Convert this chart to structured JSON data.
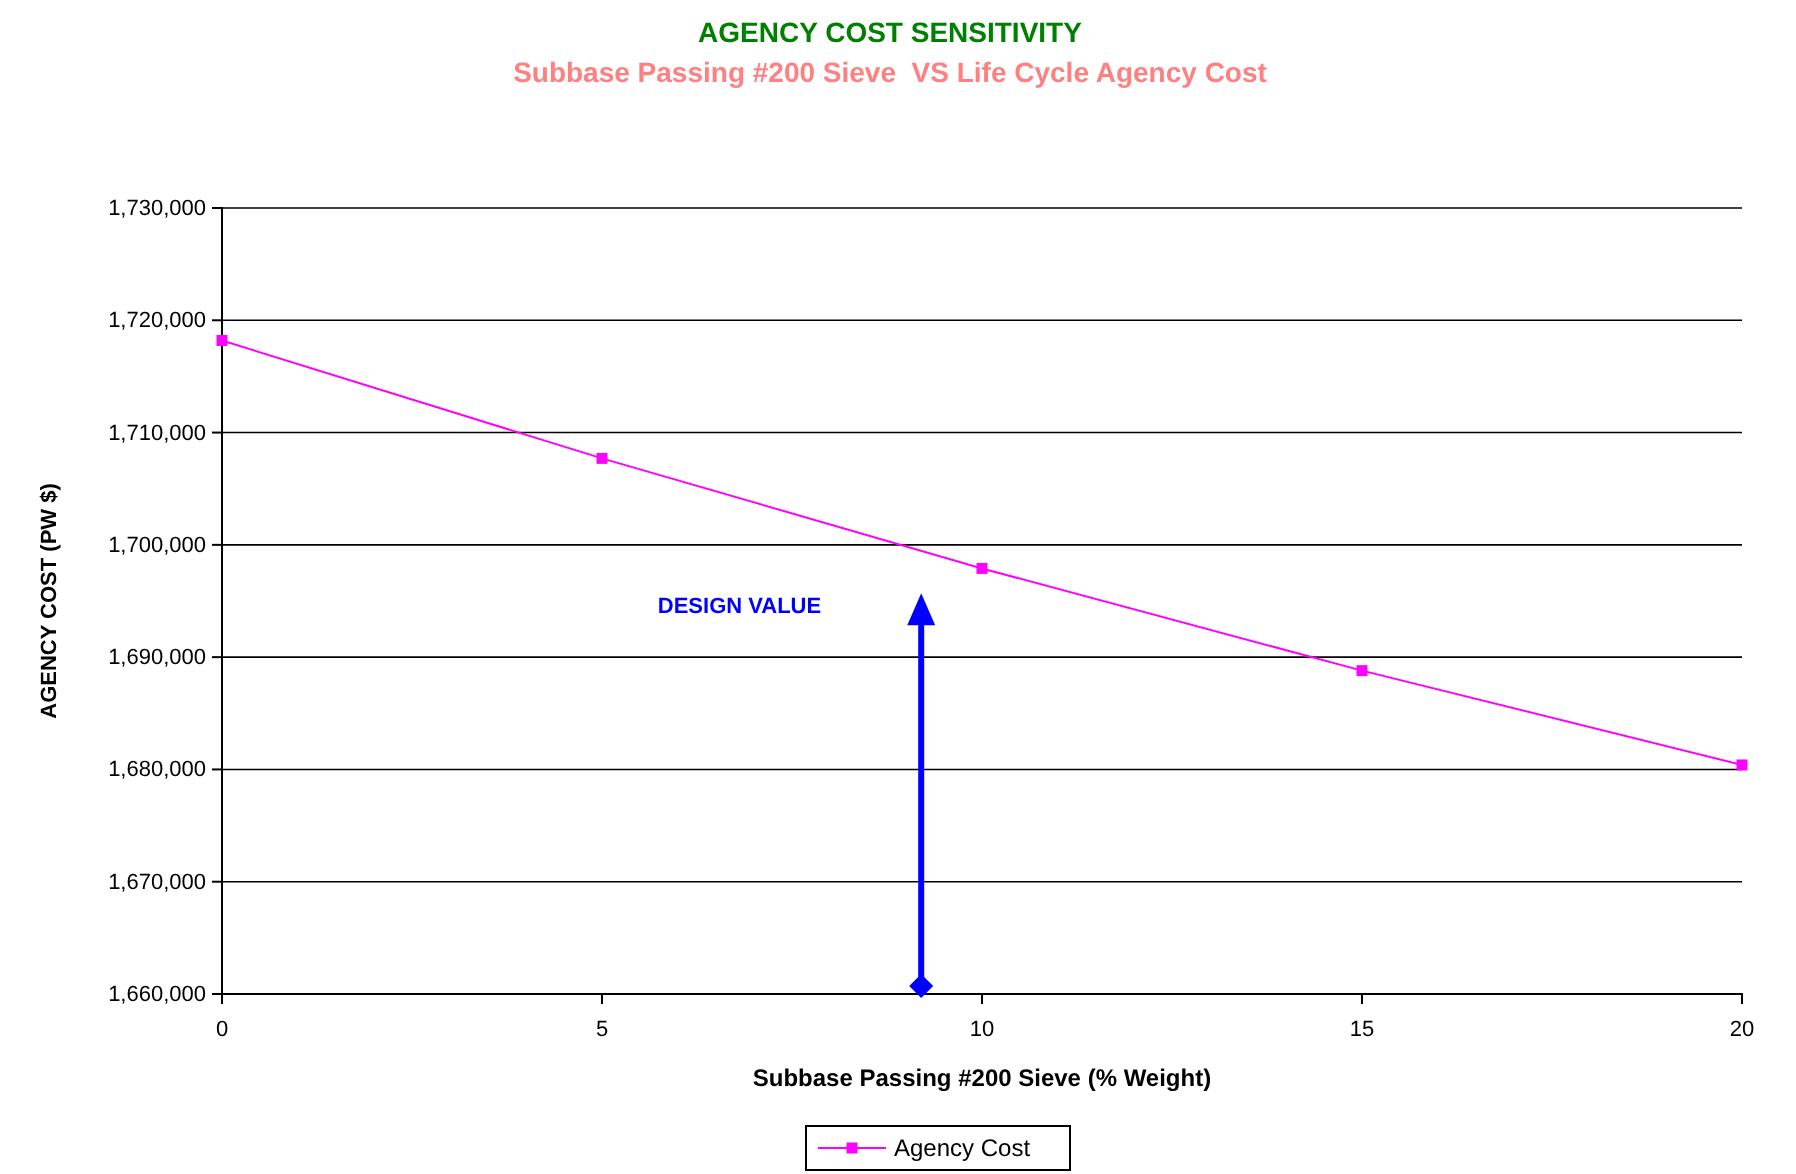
{
  "chart_data": {
    "type": "line",
    "title": "AGENCY COST SENSITIVITY",
    "subtitle": "Subbase Passing #200 Sieve  VS Life Cycle Agency Cost",
    "xlabel": "Subbase Passing #200 Sieve (% Weight)",
    "ylabel": "AGENCY COST (PW $)",
    "x": [
      0,
      5,
      10,
      15,
      20
    ],
    "series": [
      {
        "name": "Agency Cost",
        "color": "#ff00ff",
        "values": [
          1718200,
          1707700,
          1697900,
          1688800,
          1680400
        ]
      }
    ],
    "xlim": [
      0,
      20
    ],
    "xticks": [
      0,
      5,
      10,
      15,
      20
    ],
    "ylim": [
      1660000,
      1730000
    ],
    "yticks": [
      {
        "value": 1660000,
        "label": "1,660,000"
      },
      {
        "value": 1670000,
        "label": "1,670,000"
      },
      {
        "value": 1680000,
        "label": "1,680,000"
      },
      {
        "value": 1690000,
        "label": "1,690,000"
      },
      {
        "value": 1700000,
        "label": "1,700,000"
      },
      {
        "value": 1710000,
        "label": "1,710,000"
      },
      {
        "value": 1720000,
        "label": "1,720,000"
      },
      {
        "value": 1730000,
        "label": "1,730,000"
      }
    ],
    "grid": "y",
    "legend": "bottom",
    "marker": "square",
    "line_style": "solid",
    "ref_lines": [
      {
        "axis": "x",
        "value": 9.2,
        "label": "DESIGN VALUE",
        "color": "#0000ff"
      }
    ]
  }
}
